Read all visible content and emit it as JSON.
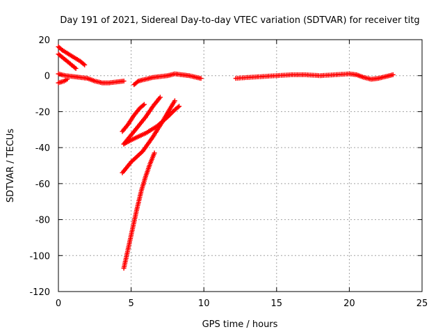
{
  "chart_data": {
    "type": "scatter",
    "title": "Day 191 of 2021, Sidereal Day-to-day VTEC variation (SDTVAR) for receiver titg",
    "xlabel": "GPS time / hours",
    "ylabel": "SDTVAR / TECUs",
    "xlim": [
      0,
      25
    ],
    "ylim": [
      -120,
      20
    ],
    "xticks": [
      "0",
      "5",
      "10",
      "15",
      "20",
      "25"
    ],
    "yticks": [
      "-120",
      "-100",
      "-80",
      "-60",
      "-40",
      "-20",
      "0",
      "20"
    ],
    "grid": true,
    "marker": "plus",
    "color": "#ff0000",
    "series": [
      {
        "points": [
          [
            0.0,
            16
          ],
          [
            0.3,
            14
          ],
          [
            0.7,
            12
          ],
          [
            1.1,
            10
          ],
          [
            1.5,
            8
          ],
          [
            1.8,
            6
          ]
        ]
      },
      {
        "points": [
          [
            0.0,
            12
          ],
          [
            0.3,
            10
          ],
          [
            0.6,
            8
          ],
          [
            0.9,
            6
          ],
          [
            1.2,
            4
          ]
        ]
      },
      {
        "points": [
          [
            0.0,
            1
          ],
          [
            0.5,
            0
          ],
          [
            1.0,
            -0.5
          ],
          [
            1.5,
            -1
          ],
          [
            2.0,
            -1.5
          ],
          [
            2.5,
            -3
          ],
          [
            3.0,
            -4
          ],
          [
            3.5,
            -4
          ],
          [
            4.0,
            -3.5
          ],
          [
            4.5,
            -3
          ]
        ]
      },
      {
        "points": [
          [
            0.0,
            -4
          ],
          [
            0.2,
            -3.5
          ],
          [
            0.4,
            -3
          ],
          [
            0.6,
            -2
          ]
        ]
      },
      {
        "points": [
          [
            5.2,
            -5
          ],
          [
            5.5,
            -3
          ],
          [
            6.0,
            -2
          ],
          [
            6.5,
            -1
          ],
          [
            7.0,
            -0.5
          ],
          [
            7.5,
            0
          ],
          [
            8.0,
            1
          ],
          [
            8.5,
            0.5
          ],
          [
            9.0,
            0
          ],
          [
            9.5,
            -1
          ],
          [
            9.8,
            -1.5
          ]
        ]
      },
      {
        "points": [
          [
            12.2,
            -1.5
          ],
          [
            13,
            -1
          ],
          [
            14,
            -0.5
          ],
          [
            15,
            0
          ],
          [
            16,
            0.5
          ],
          [
            17,
            0.5
          ],
          [
            18,
            0
          ],
          [
            19,
            0.5
          ],
          [
            20,
            1
          ],
          [
            20.5,
            0.5
          ],
          [
            21,
            -1
          ],
          [
            21.5,
            -2
          ],
          [
            22,
            -1.5
          ],
          [
            22.5,
            -0.5
          ],
          [
            23,
            0.5
          ]
        ]
      },
      {
        "points": [
          [
            4.4,
            -31
          ],
          [
            4.8,
            -27
          ],
          [
            5.2,
            -22
          ],
          [
            5.6,
            -18
          ],
          [
            5.9,
            -16
          ]
        ]
      },
      {
        "points": [
          [
            4.5,
            -38
          ],
          [
            5.0,
            -33
          ],
          [
            5.5,
            -28
          ],
          [
            6.0,
            -23
          ],
          [
            6.5,
            -17
          ],
          [
            7.0,
            -12
          ]
        ]
      },
      {
        "points": [
          [
            4.5,
            -38
          ],
          [
            5.2,
            -35
          ],
          [
            6.0,
            -32
          ],
          [
            6.8,
            -28
          ],
          [
            7.5,
            -23
          ],
          [
            8.0,
            -19
          ],
          [
            8.3,
            -17
          ]
        ]
      },
      {
        "points": [
          [
            4.4,
            -54
          ],
          [
            5.0,
            -48
          ],
          [
            5.8,
            -42
          ],
          [
            6.5,
            -34
          ],
          [
            7.2,
            -25
          ],
          [
            7.7,
            -18
          ],
          [
            8.0,
            -14
          ]
        ]
      },
      {
        "points": [
          [
            4.5,
            -107
          ],
          [
            4.8,
            -96
          ],
          [
            5.1,
            -85
          ],
          [
            5.4,
            -74
          ],
          [
            5.7,
            -64
          ],
          [
            6.0,
            -56
          ],
          [
            6.3,
            -49
          ],
          [
            6.6,
            -43
          ]
        ]
      }
    ]
  }
}
